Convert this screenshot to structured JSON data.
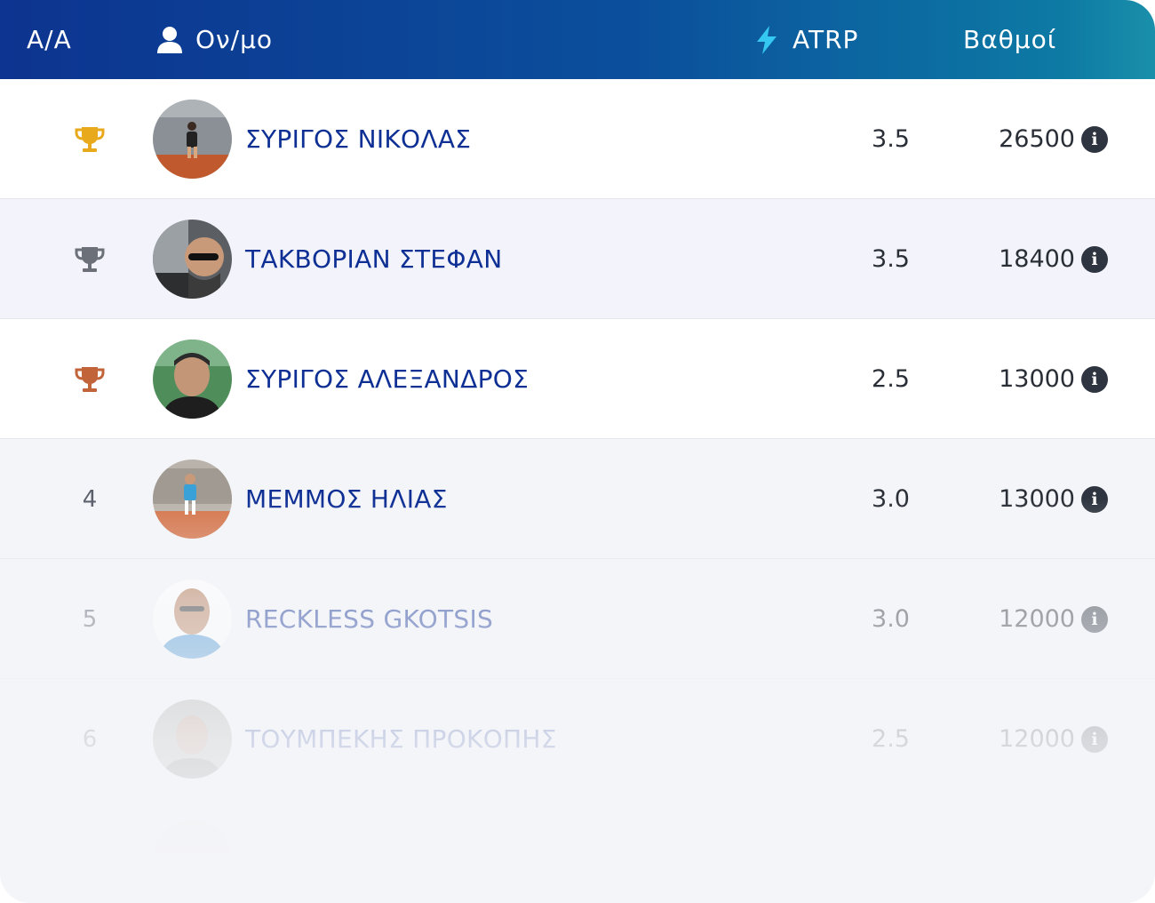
{
  "header": {
    "rank_label": "A/A",
    "name_label": "Ον/μο",
    "atrp_label": "ATRP",
    "points_label": "Βαθμοί",
    "icons": {
      "name": "user-icon",
      "atrp": "lightning-icon"
    }
  },
  "rows": [
    {
      "rank": "",
      "rank_icon": "trophy-gold-icon",
      "name": "ΣΥΡΙΓΟΣ ΝΙΚΟΛΑΣ",
      "atrp": "3.5",
      "points": "26500",
      "info_icon": "info-icon"
    },
    {
      "rank": "",
      "rank_icon": "trophy-silver-icon",
      "name": "ΤΑΚΒΟΡΙΑΝ ΣΤΕΦΑΝ",
      "atrp": "3.5",
      "points": "18400",
      "info_icon": "info-icon"
    },
    {
      "rank": "",
      "rank_icon": "trophy-bronze-icon",
      "name": "ΣΥΡΙΓΟΣ ΑΛΕΞΑΝΔΡΟΣ",
      "atrp": "2.5",
      "points": "13000",
      "info_icon": "info-icon"
    },
    {
      "rank": "4",
      "name": "ΜΕΜΜΟΣ ΗΛΙΑΣ",
      "atrp": "3.0",
      "points": "13000",
      "info_icon": "info-icon"
    },
    {
      "rank": "5",
      "name": "RECKLESS GKOTSIS",
      "atrp": "3.0",
      "points": "12000",
      "info_icon": "info-icon"
    },
    {
      "rank": "6",
      "name": "ΤΟΥΜΠΕΚΗΣ ΠΡΟΚΟΠΗΣ",
      "atrp": "2.5",
      "points": "12000",
      "info_icon": "info-icon"
    }
  ],
  "colors": {
    "header_start": "#0d3490",
    "header_end": "#1a8faa",
    "name_text": "#0e2f94",
    "trophy_gold": "#e9a91c",
    "trophy_silver": "#6b7079",
    "trophy_bronze": "#c1643a"
  }
}
